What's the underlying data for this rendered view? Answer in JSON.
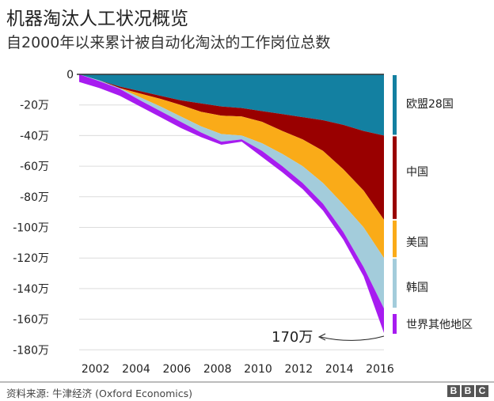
{
  "header": {
    "title": "机器淘汰人工状况概览",
    "subtitle": "自2000年以来累计被自动化淘汰的工作岗位总数"
  },
  "footer": {
    "source": "资料来源: 牛津经济 (Oxford Economics)",
    "logo_letters": [
      "B",
      "B",
      "C"
    ]
  },
  "chart_data": {
    "type": "area",
    "stacked": true,
    "unit": "万",
    "x": [
      2001,
      2002,
      2003,
      2004,
      2005,
      2006,
      2007,
      2008,
      2009,
      2010,
      2011,
      2012,
      2013,
      2014,
      2015,
      2016
    ],
    "series": [
      {
        "name": "欧盟28国",
        "color": "#1380A1",
        "values": [
          0,
          -4,
          -8,
          -11,
          -14,
          -17,
          -19,
          -21,
          -22,
          -24,
          -26,
          -28,
          -30,
          -33,
          -37,
          -40
        ]
      },
      {
        "name": "中国",
        "color": "#990000",
        "values": [
          0,
          0,
          -1,
          -1.5,
          -2,
          -3,
          -5.5,
          -6,
          -5.5,
          -7,
          -11,
          -14.5,
          -20,
          -29,
          -39,
          -55
        ]
      },
      {
        "name": "美国",
        "color": "#FAAB18",
        "values": [
          0,
          0,
          0,
          -2.5,
          -5,
          -7.5,
          -9.5,
          -12,
          -12.5,
          -14,
          -15,
          -17.5,
          -21,
          -23,
          -24,
          -25
        ]
      },
      {
        "name": "韩国",
        "color": "#A3CCDB",
        "values": [
          0,
          -0.5,
          -0.5,
          -2,
          -3,
          -3.5,
          -4,
          -5,
          -2.5,
          -5,
          -8,
          -11,
          -13.5,
          -18,
          -26,
          -33
        ]
      },
      {
        "name": "世界其他地区",
        "color": "#A71CF0",
        "values": [
          -5,
          -4.5,
          -4.5,
          -4,
          -4,
          -4,
          -3,
          -2,
          -1.5,
          -4,
          -4,
          -4,
          -4.5,
          -5,
          -6,
          -16
        ]
      }
    ],
    "xticks": [
      "2002",
      "2004",
      "2006",
      "2008",
      "2010",
      "2012",
      "2014",
      "2016"
    ],
    "yticks": [
      "0",
      "-20万",
      "-40万",
      "-60万",
      "-80万",
      "-100万",
      "-120万",
      "-140万",
      "-160万",
      "-180万"
    ],
    "ylim": [
      -180,
      0
    ],
    "grid": true,
    "legend": "right",
    "annotation": "170万"
  }
}
